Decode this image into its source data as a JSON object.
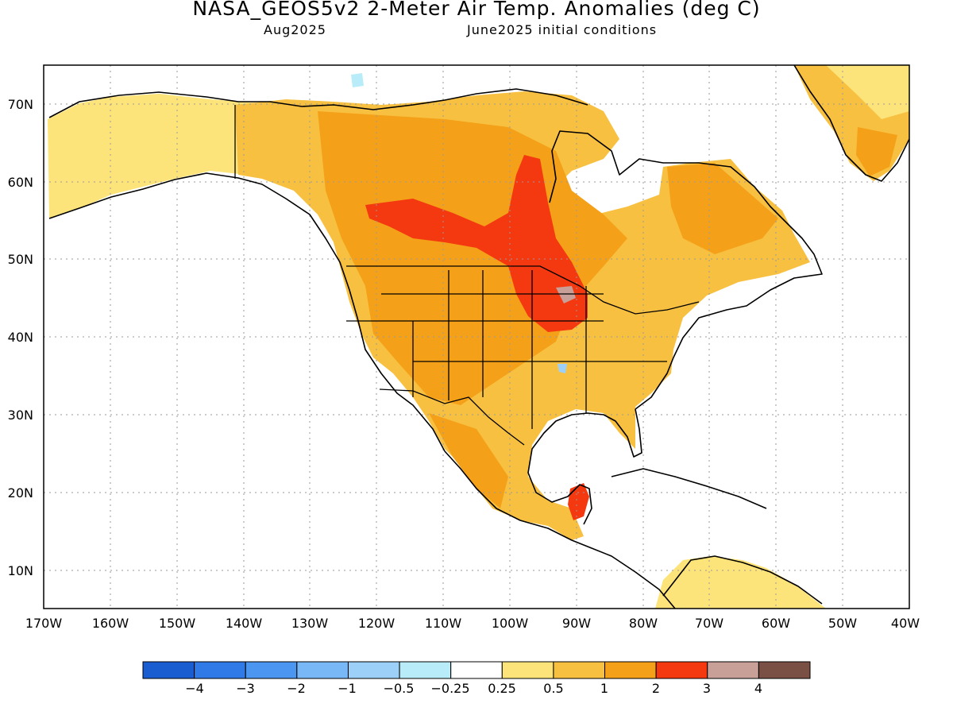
{
  "title": "NASA_GEOS5v2 2-Meter Air Temp. Anomalies (deg C)",
  "valid_month": "Aug2025",
  "initial_conditions": "June2025 initial conditions",
  "lat_labels": [
    "70N",
    "60N",
    "50N",
    "40N",
    "30N",
    "20N",
    "10N"
  ],
  "lon_labels": [
    "170W",
    "160W",
    "150W",
    "140W",
    "130W",
    "120W",
    "110W",
    "100W",
    "90W",
    "80W",
    "70W",
    "60W",
    "50W",
    "40W"
  ],
  "legend": {
    "colors": [
      "#1a5dd0",
      "#2f7ae6",
      "#4a96f0",
      "#78b8f6",
      "#9cd0f8",
      "#b8ecf8",
      "#ffffff",
      "#fde47a",
      "#f8c040",
      "#f4a018",
      "#f43810",
      "#c8a098",
      "#7a5044"
    ],
    "labels": [
      "−4",
      "−3",
      "−2",
      "−1",
      "−0.5",
      "−0.25",
      "0.25",
      "0.5",
      "1",
      "2",
      "3",
      "4"
    ]
  }
}
